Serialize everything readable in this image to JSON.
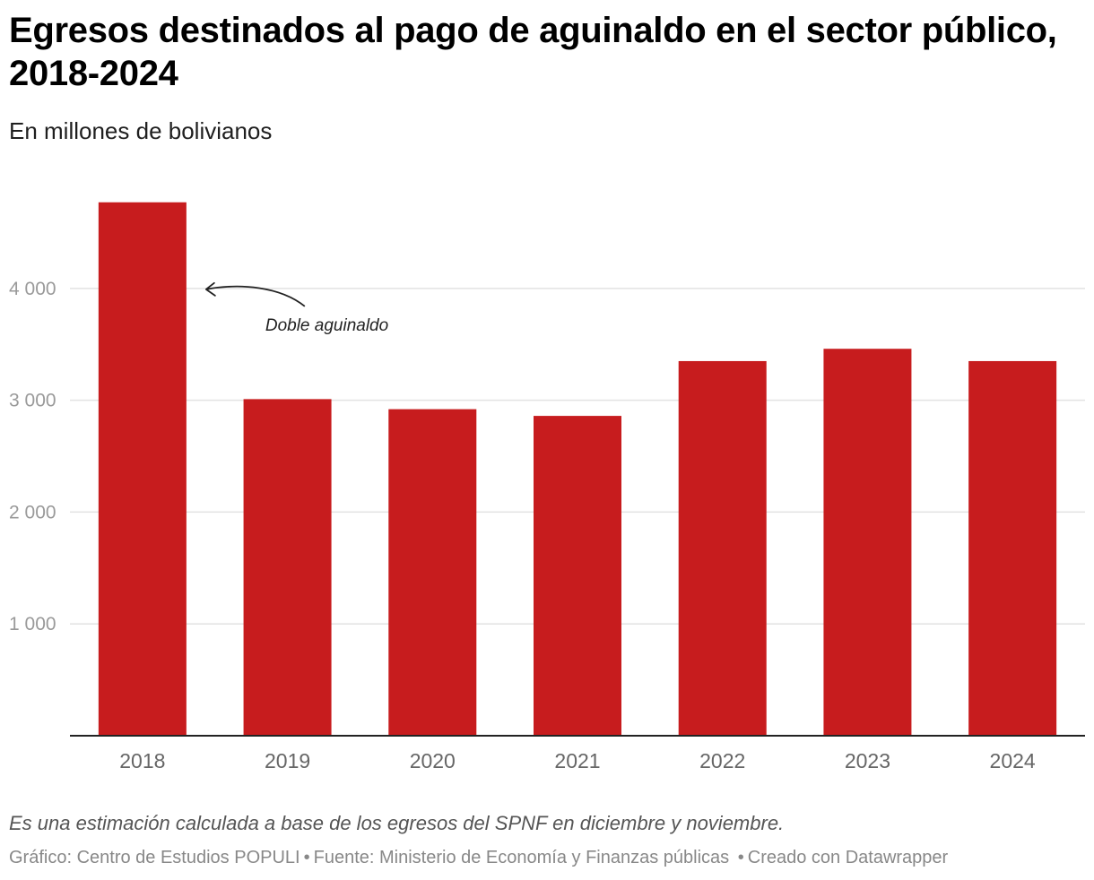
{
  "title": "Egresos destinados al pago de aguinaldo en el sector público, 2018-2024",
  "subtitle": "En millones de bolivianos",
  "chart_data": {
    "type": "bar",
    "categories": [
      "2018",
      "2019",
      "2020",
      "2021",
      "2022",
      "2023",
      "2024"
    ],
    "values": [
      4770,
      3010,
      2920,
      2860,
      3350,
      3460,
      3350
    ],
    "ylim": [
      0,
      4800
    ],
    "yticks": [
      1000,
      2000,
      3000,
      4000
    ],
    "ytick_labels": [
      "1 000",
      "2 000",
      "3 000",
      "4 000"
    ],
    "xlabel": "",
    "ylabel": "",
    "grid": true,
    "bar_color": "#c71c1e",
    "annotation": {
      "text": "Doble aguinaldo",
      "target": "2018",
      "value": 4000
    }
  },
  "footer": {
    "note": "Es una estimación calculada a base de los egresos del SPNF en diciembre y noviembre.",
    "credits": [
      "Gráfico: Centro de Estudios POPULI",
      "Fuente: Ministerio de Economía y Finanzas públicas",
      "Creado con Datawrapper"
    ]
  }
}
